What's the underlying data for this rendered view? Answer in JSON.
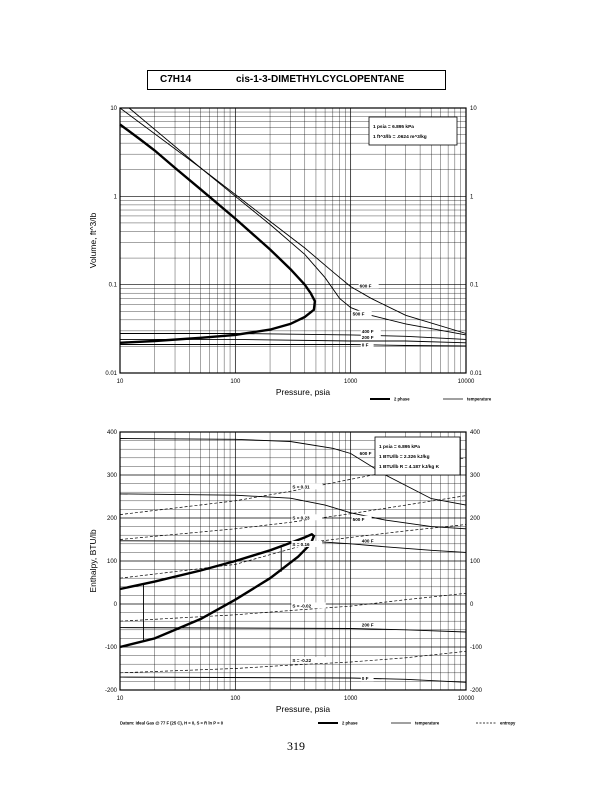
{
  "header": {
    "formula": "C7H14",
    "name": "cis-1-3-DIMETHYLCYCLOPENTANE"
  },
  "page_number": "319",
  "chart_data": [
    {
      "type": "line",
      "xlabel": "Pressure, psia",
      "ylabel": "Volume, ft^3/lb",
      "xscale": "log",
      "yscale": "log",
      "xlim": [
        10,
        10000
      ],
      "ylim": [
        0.01,
        10
      ],
      "x_ticks": [
        "10",
        "100",
        "1000",
        "10000"
      ],
      "y_ticks": [
        "0.01",
        "0.1",
        "1",
        "10"
      ],
      "y_ticks_right": [
        "0.01",
        "0.1",
        "1",
        "10"
      ],
      "grid": true,
      "conversion_box": [
        "1 psia = 6.895 kPa",
        "1 ft^3/lb = .0624 m^3/kg"
      ],
      "legend": [
        {
          "label": "2 phase",
          "style": "thick"
        },
        {
          "label": "temperature",
          "style": "thin"
        }
      ],
      "series": [
        {
          "kind": "2 phase",
          "points": [
            [
              10,
              6.5
            ],
            [
              15,
              4.4
            ],
            [
              20,
              3.3
            ],
            [
              30,
              2.1
            ],
            [
              50,
              1.2
            ],
            [
              100,
              0.56
            ],
            [
              200,
              0.25
            ],
            [
              300,
              0.15
            ],
            [
              400,
              0.1
            ],
            [
              450,
              0.08
            ],
            [
              490,
              0.065
            ],
            [
              480,
              0.052
            ],
            [
              400,
              0.043
            ],
            [
              300,
              0.036
            ],
            [
              200,
              0.031
            ],
            [
              100,
              0.027
            ],
            [
              50,
              0.025
            ],
            [
              20,
              0.023
            ],
            [
              10,
              0.022
            ]
          ]
        },
        {
          "kind": "temperature",
          "label": "600 F",
          "points": [
            [
              10,
              10
            ],
            [
              50,
              2.1
            ],
            [
              100,
              1.05
            ],
            [
              200,
              0.52
            ],
            [
              400,
              0.26
            ],
            [
              700,
              0.14
            ],
            [
              1000,
              0.095
            ],
            [
              1500,
              0.07
            ],
            [
              3000,
              0.045
            ],
            [
              10000,
              0.028
            ]
          ]
        },
        {
          "kind": "temperature",
          "label": "500 F",
          "points": [
            [
              12,
              10
            ],
            [
              50,
              2.1
            ],
            [
              100,
              1.0
            ],
            [
              200,
              0.48
            ],
            [
              400,
              0.22
            ],
            [
              600,
              0.12
            ],
            [
              800,
              0.07
            ],
            [
              1000,
              0.055
            ],
            [
              1500,
              0.045
            ],
            [
              3000,
              0.036
            ],
            [
              10000,
              0.027
            ]
          ]
        },
        {
          "kind": "temperature",
          "label": "400 F",
          "points": [
            [
              10,
              0.028
            ],
            [
              100,
              0.028
            ],
            [
              1000,
              0.027
            ],
            [
              3000,
              0.026
            ],
            [
              10000,
              0.024
            ]
          ]
        },
        {
          "kind": "temperature",
          "label": "200 F",
          "points": [
            [
              10,
              0.024
            ],
            [
              100,
              0.024
            ],
            [
              1000,
              0.023
            ],
            [
              3000,
              0.023
            ],
            [
              10000,
              0.022
            ]
          ]
        },
        {
          "kind": "temperature",
          "label": "0 F",
          "points": [
            [
              10,
              0.021
            ],
            [
              100,
              0.021
            ],
            [
              1000,
              0.021
            ],
            [
              3000,
              0.0205
            ],
            [
              10000,
              0.0202
            ]
          ]
        }
      ]
    },
    {
      "type": "line",
      "xlabel": "Pressure, psia",
      "ylabel": "Enthalpy, BTU/lb",
      "xscale": "log",
      "xlim": [
        10,
        10000
      ],
      "ylim": [
        -200,
        400
      ],
      "x_ticks": [
        "10",
        "100",
        "1000",
        "10000"
      ],
      "y_ticks": [
        "-200",
        "-100",
        "0",
        "100",
        "200",
        "300",
        "400"
      ],
      "y_ticks_right": [
        "-200",
        "-100",
        "0",
        "100",
        "200",
        "300",
        "400"
      ],
      "grid": true,
      "conversion_box": [
        "1 psia = 6.895 kPa",
        "1 BTU/lb = 2.326 kJ/kg",
        "1 BTU/lb R = 4.187 kJ/kg K"
      ],
      "datum_note": "Datum: Ideal Gas @ 77 F (25 C), H = 0, S = R ln P = 0",
      "legend": [
        {
          "label": "2 phase",
          "style": "thick"
        },
        {
          "label": "temperature",
          "style": "thin"
        },
        {
          "label": "entropy",
          "style": "dashed"
        }
      ],
      "series": [
        {
          "kind": "2 phase",
          "points": [
            [
              10,
              35
            ],
            [
              20,
              52
            ],
            [
              50,
              78
            ],
            [
              100,
              100
            ],
            [
              200,
              125
            ],
            [
              300,
              142
            ],
            [
              400,
              155
            ],
            [
              460,
              162
            ],
            [
              480,
              158
            ],
            [
              450,
              140
            ],
            [
              350,
              110
            ],
            [
              200,
              60
            ],
            [
              100,
              10
            ],
            [
              50,
              -35
            ],
            [
              20,
              -80
            ],
            [
              10,
              -100
            ]
          ]
        },
        {
          "kind": "2 phase tie-line",
          "points": [
            [
              16,
              46
            ],
            [
              16,
              -86
            ]
          ]
        },
        {
          "kind": "2 phase tie-line",
          "points": [
            [
              250,
              132
            ],
            [
              250,
              75
            ]
          ]
        },
        {
          "kind": "temperature",
          "label": "600 F",
          "points": [
            [
              10,
              385
            ],
            [
              100,
              383
            ],
            [
              300,
              378
            ],
            [
              700,
              362
            ],
            [
              1000,
              350
            ],
            [
              2000,
              300
            ],
            [
              5000,
              245
            ],
            [
              10000,
              230
            ]
          ]
        },
        {
          "kind": "temperature",
          "label": "500 F",
          "points": [
            [
              10,
              256
            ],
            [
              100,
              253
            ],
            [
              300,
              246
            ],
            [
              600,
              230
            ],
            [
              1000,
              212
            ],
            [
              2000,
              195
            ],
            [
              5000,
              180
            ],
            [
              10000,
              175
            ]
          ]
        },
        {
          "kind": "temperature",
          "label": "400 F",
          "points": [
            [
              10,
              147
            ],
            [
              500,
              145
            ],
            [
              1000,
              140
            ],
            [
              2000,
              133
            ],
            [
              5000,
              125
            ],
            [
              10000,
              120
            ]
          ]
        },
        {
          "kind": "temperature",
          "label": "200 F",
          "points": [
            [
              10,
              -55
            ],
            [
              1000,
              -57
            ],
            [
              3000,
              -60
            ],
            [
              10000,
              -65
            ]
          ]
        },
        {
          "kind": "temperature",
          "label": "0 F",
          "points": [
            [
              10,
              -170
            ],
            [
              1000,
              -172
            ],
            [
              3000,
              -175
            ],
            [
              10000,
              -182
            ]
          ]
        },
        {
          "kind": "entropy",
          "label": "S = 0.31",
          "points": [
            [
              10,
              208
            ],
            [
              100,
              240
            ],
            [
              300,
              262
            ],
            [
              1000,
              290
            ],
            [
              3000,
              315
            ],
            [
              10000,
              340
            ]
          ]
        },
        {
          "kind": "entropy",
          "label": "S = 0.23",
          "points": [
            [
              10,
              150
            ],
            [
              100,
              175
            ],
            [
              300,
              190
            ],
            [
              1000,
              210
            ],
            [
              3000,
              230
            ],
            [
              10000,
              252
            ]
          ]
        },
        {
          "kind": "entropy",
          "label": "S = 0.16",
          "points": [
            [
              10,
              60
            ],
            [
              100,
              92
            ],
            [
              300,
              128
            ],
            [
              500,
              145
            ],
            [
              1000,
              155
            ],
            [
              3000,
              170
            ],
            [
              10000,
              185
            ]
          ]
        },
        {
          "kind": "entropy",
          "label": "S = -0.02",
          "points": [
            [
              10,
              -40
            ],
            [
              100,
              -25
            ],
            [
              300,
              -15
            ],
            [
              1000,
              -5
            ],
            [
              3000,
              10
            ],
            [
              10000,
              25
            ]
          ]
        },
        {
          "kind": "entropy",
          "label": "S = -0.22",
          "points": [
            [
              10,
              -160
            ],
            [
              100,
              -150
            ],
            [
              300,
              -142
            ],
            [
              1000,
              -135
            ],
            [
              3000,
              -125
            ],
            [
              10000,
              -110
            ]
          ]
        }
      ]
    }
  ]
}
